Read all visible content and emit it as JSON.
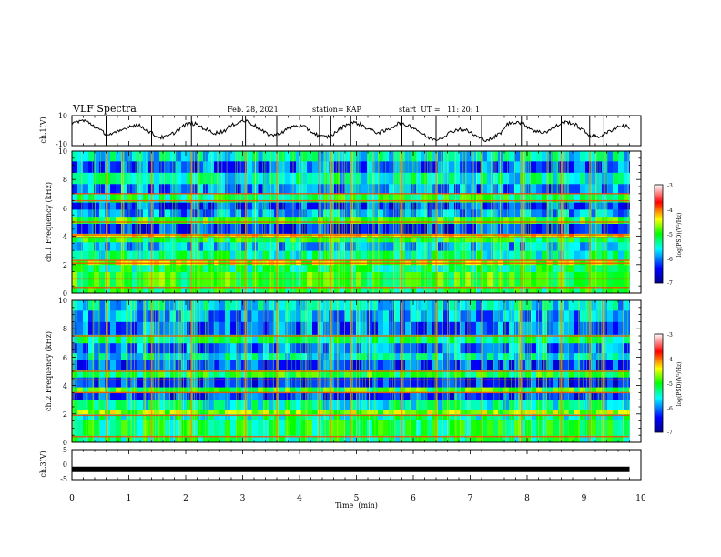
{
  "header": {
    "title": "VLF Spectra",
    "date": "Feb. 28, 2021",
    "station": "station= KAP",
    "start_time": "start  UT =   11: 20: 1"
  },
  "chart_data": [
    {
      "name": "ch1-voltage",
      "type": "line",
      "ylabel": "ch.1(V)",
      "ylim": [
        -10,
        10
      ],
      "ytick_labels": [
        "10",
        "-10"
      ],
      "xlim": [
        0,
        10
      ],
      "data_extent_min": 9.8,
      "series": [
        {
          "x_span": [
            0,
            9.8
          ],
          "mean": 1,
          "amplitude": 7
        }
      ]
    },
    {
      "name": "ch1-spectrogram",
      "type": "heatmap",
      "ylabel": "ch.1 Frequency (kHz)",
      "ylim": [
        0,
        10
      ],
      "ytick_labels": [
        "0",
        "2",
        "4",
        "6",
        "8",
        "10"
      ],
      "xlim": [
        0,
        10
      ],
      "data_extent_min": 9.8,
      "colorbar": {
        "label": "log(PSD)(V²/Hz)",
        "range": [
          -7,
          -3
        ],
        "tick_labels": [
          "-3",
          "-4",
          "-5",
          "-6",
          "-7"
        ]
      },
      "bands_khz": [
        {
          "from": 0.0,
          "to": 0.5,
          "level": -5.2
        },
        {
          "from": 0.5,
          "to": 1.5,
          "level": -5.0
        },
        {
          "from": 1.5,
          "to": 2.0,
          "level": -5.3
        },
        {
          "from": 2.0,
          "to": 2.3,
          "level": -4.6
        },
        {
          "from": 2.3,
          "to": 3.0,
          "level": -5.4
        },
        {
          "from": 3.0,
          "to": 3.6,
          "level": -5.8
        },
        {
          "from": 3.6,
          "to": 4.0,
          "level": -5.1
        },
        {
          "from": 4.0,
          "to": 4.2,
          "level": -4.4
        },
        {
          "from": 4.2,
          "to": 4.9,
          "level": -6.3
        },
        {
          "from": 4.9,
          "to": 5.4,
          "level": -5.0
        },
        {
          "from": 5.4,
          "to": 5.9,
          "level": -5.9
        },
        {
          "from": 5.9,
          "to": 6.4,
          "level": -6.2
        },
        {
          "from": 6.4,
          "to": 7.0,
          "level": -5.2
        },
        {
          "from": 7.0,
          "to": 7.7,
          "level": -6.0
        },
        {
          "from": 7.7,
          "to": 8.5,
          "level": -5.5
        },
        {
          "from": 8.5,
          "to": 9.3,
          "level": -6.1
        },
        {
          "from": 9.3,
          "to": 10.0,
          "level": -5.6
        }
      ],
      "lines_khz": [
        0.4,
        1.0,
        2.1,
        2.3,
        3.9,
        4.1,
        5.0,
        6.5,
        7.0
      ],
      "burst_times_min": [
        0.6,
        1.4,
        2.1,
        3.05,
        3.6,
        4.35,
        4.55,
        4.9,
        5.8,
        6.4,
        7.2,
        7.9,
        8.6,
        9.1,
        9.35
      ]
    },
    {
      "name": "ch2-spectrogram",
      "type": "heatmap",
      "ylabel": "ch.2 Frequency (kHz)",
      "ylim": [
        0,
        10
      ],
      "ytick_labels": [
        "0",
        "2",
        "4",
        "6",
        "8",
        "10"
      ],
      "xlim": [
        0,
        10
      ],
      "data_extent_min": 9.8,
      "colorbar": {
        "label": "log(PSD)(V²/Hz)",
        "range": [
          -7,
          -3
        ],
        "tick_labels": [
          "-3",
          "-4",
          "-5",
          "-6",
          "-7"
        ]
      },
      "bands_khz": [
        {
          "from": 0.0,
          "to": 0.5,
          "level": -5.3
        },
        {
          "from": 0.5,
          "to": 1.6,
          "level": -5.2
        },
        {
          "from": 1.6,
          "to": 2.0,
          "level": -5.4
        },
        {
          "from": 2.0,
          "to": 2.3,
          "level": -4.7
        },
        {
          "from": 2.3,
          "to": 3.0,
          "level": -5.5
        },
        {
          "from": 3.0,
          "to": 3.5,
          "level": -6.3
        },
        {
          "from": 3.5,
          "to": 3.9,
          "level": -5.0
        },
        {
          "from": 3.9,
          "to": 4.6,
          "level": -6.3
        },
        {
          "from": 4.6,
          "to": 5.1,
          "level": -5.1
        },
        {
          "from": 5.1,
          "to": 5.8,
          "level": -6.2
        },
        {
          "from": 5.8,
          "to": 6.3,
          "level": -5.6
        },
        {
          "from": 6.3,
          "to": 7.0,
          "level": -6.0
        },
        {
          "from": 7.0,
          "to": 7.6,
          "level": -5.3
        },
        {
          "from": 7.6,
          "to": 8.5,
          "level": -6.1
        },
        {
          "from": 8.5,
          "to": 9.3,
          "level": -5.9
        },
        {
          "from": 9.3,
          "to": 10.0,
          "level": -5.7
        }
      ],
      "lines_khz": [
        0.4,
        1.9,
        3.5,
        4.4,
        5.0,
        7.5
      ],
      "burst_times_min": [
        0.6,
        1.4,
        2.1,
        3.05,
        3.6,
        4.35,
        4.55,
        4.9,
        5.8,
        6.4,
        7.2,
        7.9,
        8.6,
        9.1,
        9.35
      ]
    },
    {
      "name": "ch3-voltage",
      "type": "line",
      "ylabel": "ch.3(V)",
      "ylim": [
        -5,
        5
      ],
      "ytick_labels": [
        "5",
        "0",
        "-5"
      ],
      "xlim": [
        0,
        10
      ],
      "data_extent_min": 9.8,
      "series": [
        {
          "x_span": [
            0,
            9.8
          ],
          "y": -1.6
        }
      ]
    }
  ],
  "x_axis": {
    "label": "Time  (min)",
    "tick_labels": [
      "0",
      "1",
      "2",
      "3",
      "4",
      "5",
      "6",
      "7",
      "8",
      "9",
      "10"
    ]
  }
}
